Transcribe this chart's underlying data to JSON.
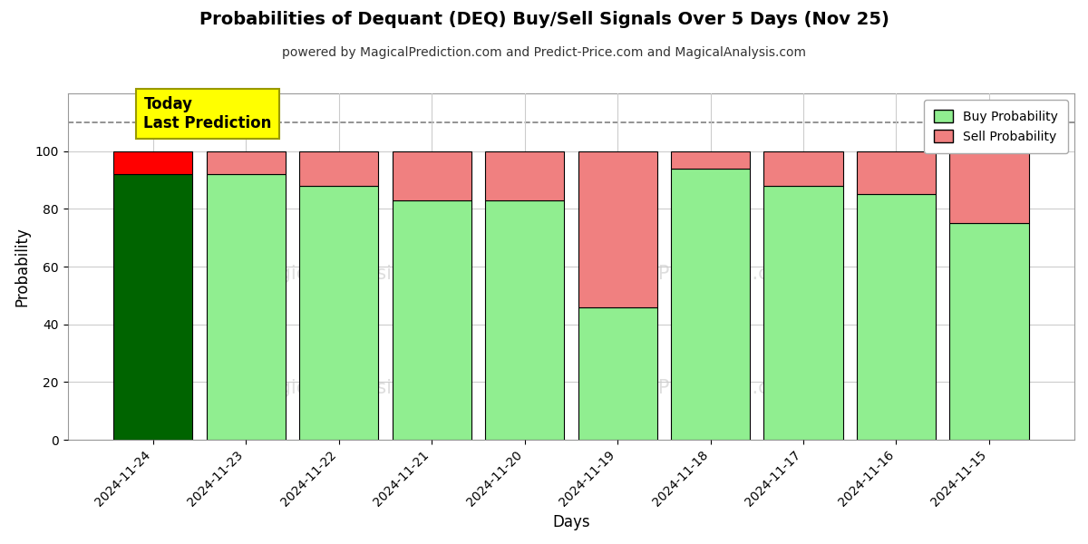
{
  "title": "Probabilities of Dequant (DEQ) Buy/Sell Signals Over 5 Days (Nov 25)",
  "subtitle": "powered by MagicalPrediction.com and Predict-Price.com and MagicalAnalysis.com",
  "xlabel": "Days",
  "ylabel": "Probability",
  "dates": [
    "2024-11-24",
    "2024-11-23",
    "2024-11-22",
    "2024-11-21",
    "2024-11-20",
    "2024-11-19",
    "2024-11-18",
    "2024-11-17",
    "2024-11-16",
    "2024-11-15"
  ],
  "buy_values": [
    92,
    92,
    88,
    83,
    83,
    46,
    94,
    88,
    85,
    75
  ],
  "sell_values": [
    8,
    8,
    12,
    17,
    17,
    54,
    6,
    12,
    15,
    25
  ],
  "today_bar_buy_color": "#006400",
  "today_bar_sell_color": "#FF0000",
  "regular_bar_buy_color": "#90EE90",
  "regular_bar_sell_color": "#F08080",
  "today_annotation_bg": "#FFFF00",
  "today_annotation_text": "Today\nLast Prediction",
  "ylim": [
    0,
    120
  ],
  "yticks": [
    0,
    20,
    40,
    60,
    80,
    100
  ],
  "dashed_line_y": 110,
  "bg_color": "#ffffff",
  "grid_color": "#cccccc",
  "bar_edge_color": "#000000",
  "bar_width": 0.85
}
